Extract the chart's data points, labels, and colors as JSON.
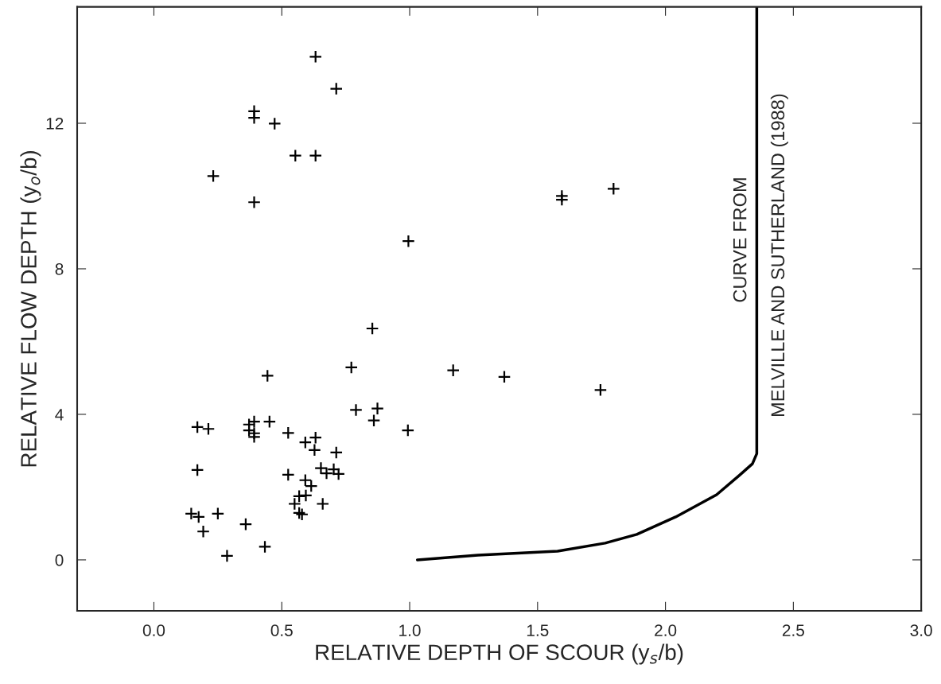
{
  "chart_data": {
    "type": "scatter",
    "xlabel": "RELATIVE DEPTH OF SCOUR (y$_{s}$/b)",
    "ylabel": "RELATIVE FLOW DEPTH (y$_{o}$/b)",
    "xlim": [
      -0.3,
      3.0
    ],
    "ylim": [
      -1.4,
      15.2
    ],
    "xticks": [
      {
        "value": 0,
        "label": "0.0"
      },
      {
        "value": 0.5,
        "label": "0.5"
      },
      {
        "value": 1,
        "label": "1.0"
      },
      {
        "value": 1.5,
        "label": "1.5"
      },
      {
        "value": 2,
        "label": "2.0"
      },
      {
        "value": 2.5,
        "label": "2.5"
      },
      {
        "value": 3,
        "label": "3.0"
      }
    ],
    "yticks": [
      0,
      4,
      8,
      12
    ],
    "grid": false,
    "legend": false,
    "series": [
      {
        "marker": "cross",
        "color": "#000000",
        "x": [
          0.79,
          0.874,
          0.86,
          0.993,
          0.17,
          0.213,
          0.372,
          0.392,
          0.452,
          0.372,
          0.392,
          0.392,
          0.525,
          0.592,
          0.632,
          0.628,
          0.713,
          0.17,
          0.653,
          0.675,
          0.703,
          0.722,
          0.525,
          0.592,
          0.615,
          0.568,
          0.594,
          0.55,
          0.66,
          0.568,
          0.579,
          0.146,
          0.175,
          0.25,
          0.193,
          0.359,
          0.434,
          0.286,
          0.632,
          0.713,
          0.392,
          0.392,
          0.472,
          0.553,
          0.632,
          0.232,
          0.392,
          0.995,
          0.854,
          0.772,
          1.17,
          1.37,
          1.746,
          0.444,
          1.595,
          1.595,
          1.797
        ],
        "values": [
          4.12,
          4.16,
          3.83,
          3.56,
          3.65,
          3.6,
          3.72,
          3.8,
          3.8,
          3.56,
          3.48,
          3.38,
          3.49,
          3.23,
          3.36,
          3.02,
          2.95,
          2.47,
          2.52,
          2.38,
          2.49,
          2.36,
          2.34,
          2.19,
          2.03,
          1.75,
          1.77,
          1.54,
          1.54,
          1.29,
          1.25,
          1.27,
          1.18,
          1.27,
          0.78,
          0.98,
          0.36,
          0.11,
          13.83,
          12.95,
          12.33,
          12.15,
          11.99,
          11.11,
          11.11,
          10.55,
          9.83,
          8.76,
          6.36,
          5.29,
          5.21,
          5.03,
          4.67,
          5.06,
          10.0,
          9.9,
          10.2
        ]
      },
      {
        "type": "line",
        "color": "#000000",
        "line_style": "solid",
        "marker": "none",
        "x": [
          1.03,
          1.267,
          1.578,
          1.764,
          1.888,
          2.04,
          2.2,
          2.29,
          2.34,
          2.357,
          2.357
        ],
        "values": [
          0,
          0.13,
          0.24,
          0.46,
          0.7,
          1.18,
          1.79,
          2.33,
          2.64,
          2.92,
          15.2
        ]
      }
    ],
    "annotations": [
      "CURVE FROM",
      "MELVILLE AND SUTHERLAND (1988)"
    ]
  }
}
